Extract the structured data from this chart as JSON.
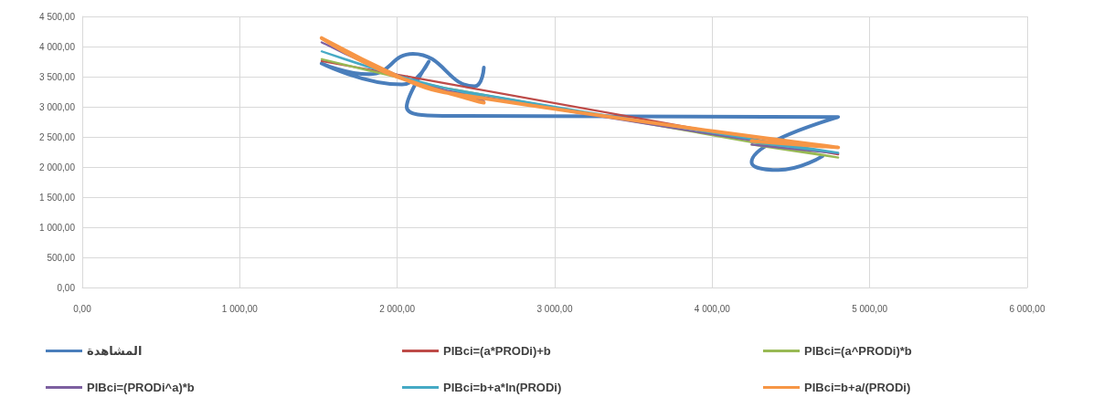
{
  "chart_data": {
    "type": "line",
    "legend": "bottom",
    "grid": true,
    "marker": "none",
    "line_style": "solid",
    "xlim": [
      0,
      6000
    ],
    "ylim": [
      0,
      4500
    ],
    "xticks": [
      {
        "value": 0,
        "label": "0,00"
      },
      {
        "value": 1000,
        "label": "1 000,00"
      },
      {
        "value": 2000,
        "label": "2 000,00"
      },
      {
        "value": 3000,
        "label": "3 000,00"
      },
      {
        "value": 4000,
        "label": "4 000,00"
      },
      {
        "value": 5000,
        "label": "5 000,00"
      },
      {
        "value": 6000,
        "label": "6 000,00"
      }
    ],
    "yticks": [
      {
        "value": 0,
        "label": "0,00"
      },
      {
        "value": 500,
        "label": "500,00"
      },
      {
        "value": 1000,
        "label": "1 000,00"
      },
      {
        "value": 1500,
        "label": "1 500,00"
      },
      {
        "value": 2000,
        "label": "2 000,00"
      },
      {
        "value": 2500,
        "label": "2 500,00"
      },
      {
        "value": 3000,
        "label": "3 000,00"
      },
      {
        "value": 3500,
        "label": "3 500,00"
      },
      {
        "value": 4000,
        "label": "4 000,00"
      },
      {
        "value": 4500,
        "label": "4 500,00"
      }
    ],
    "x": [
      2550,
      2490,
      2100,
      1820,
      1520,
      2030,
      2200,
      2060,
      2300,
      4800,
      4250,
      4420,
      4700
    ],
    "series": [
      {
        "name": "المشاهدة",
        "color": "#4a7ebb",
        "values": [
          3650,
          3340,
          3880,
          3540,
          3720,
          3370,
          3750,
          3000,
          2850,
          2830,
          2080,
          1950,
          2180
        ]
      },
      {
        "name": "PIBci=(a*PRODi)+b",
        "color": "#be4b48",
        "values": [
          3273,
          3301,
          3486,
          3618,
          3760,
          3519,
          3439,
          3505,
          3391,
          2210,
          2470,
          2389,
          2257
        ]
      },
      {
        "name": "PIBci=(a^PRODi)*b",
        "color": "#98b954",
        "values": [
          3176,
          3208,
          3431,
          3600,
          3790,
          3472,
          3372,
          3454,
          3315,
          2157,
          2371,
          2303,
          2195
        ]
      },
      {
        "name": "PIBci=(PRODi^a)*b",
        "color": "#7d60a0",
        "values": [
          3102,
          3141,
          3435,
          3703,
          4070,
          3497,
          3352,
          3470,
          3275,
          2226,
          2372,
          2324,
          2250
        ]
      },
      {
        "name": "PIBci=b+a*ln(PRODi)",
        "color": "#46aac5",
        "values": [
          3162,
          3197,
          3447,
          3656,
          3920,
          3496,
          3379,
          3475,
          3314,
          2237,
          2415,
          2357,
          2267
        ]
      },
      {
        "name": "PIBci=b+a/(PRODi)",
        "color": "#f79646",
        "values": [
          3067,
          3105,
          3406,
          3702,
          4141,
          3473,
          3319,
          3444,
          3239,
          2324,
          2433,
          2396,
          2342
        ]
      }
    ]
  }
}
